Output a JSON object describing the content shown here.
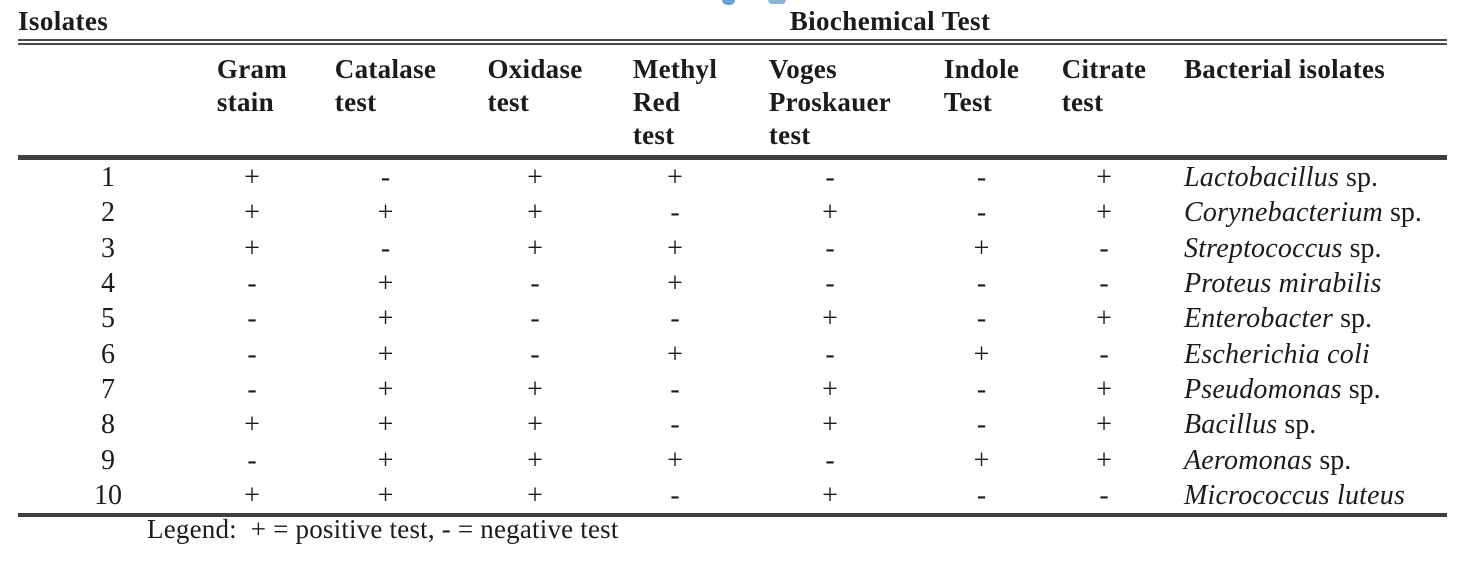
{
  "colors": {
    "text": "#1b1b1b",
    "rule": "#3f3f3f",
    "cropped_link_blue": "#6d9fd0",
    "background": "#ffffff"
  },
  "table": {
    "row_group_label": "Isolates",
    "group_header": "Biochemical Test",
    "column_headers": [
      {
        "id": "gram-stain",
        "lines": [
          "Gram",
          "stain"
        ]
      },
      {
        "id": "catalase-test",
        "lines": [
          "Catalase",
          "test"
        ]
      },
      {
        "id": "oxidase-test",
        "lines": [
          "Oxidase",
          "test"
        ]
      },
      {
        "id": "methyl-red-test",
        "lines": [
          "Methyl",
          "Red",
          "test"
        ]
      },
      {
        "id": "voges-proskauer-test",
        "lines": [
          "Voges",
          "Proskauer",
          "test"
        ]
      },
      {
        "id": "indole-test",
        "lines": [
          "Indole",
          "Test"
        ]
      },
      {
        "id": "citrate-test",
        "lines": [
          "Citrate",
          "test"
        ]
      },
      {
        "id": "bacterial-isolates",
        "lines": [
          "Bacterial isolates"
        ]
      }
    ],
    "rows": [
      {
        "isolate": "1",
        "gram_stain": "+",
        "catalase": "-",
        "oxidase": "+",
        "methyl_red": "+",
        "voges_proskauer": "-",
        "indole": "-",
        "citrate": "+",
        "species_italic": "Lactobacillus",
        "species_suffix": " sp."
      },
      {
        "isolate": "2",
        "gram_stain": "+",
        "catalase": "+",
        "oxidase": "+",
        "methyl_red": "-",
        "voges_proskauer": "+",
        "indole": "-",
        "citrate": "+",
        "species_italic": "Corynebacterium",
        "species_suffix": " sp."
      },
      {
        "isolate": "3",
        "gram_stain": "+",
        "catalase": "-",
        "oxidase": "+",
        "methyl_red": "+",
        "voges_proskauer": "-",
        "indole": "+",
        "citrate": "-",
        "species_italic": "Streptococcus",
        "species_suffix": " sp."
      },
      {
        "isolate": "4",
        "gram_stain": "-",
        "catalase": "+",
        "oxidase": "-",
        "methyl_red": "+",
        "voges_proskauer": "-",
        "indole": "-",
        "citrate": "-",
        "species_italic": "Proteus mirabilis",
        "species_suffix": ""
      },
      {
        "isolate": "5",
        "gram_stain": "-",
        "catalase": "+",
        "oxidase": "-",
        "methyl_red": "-",
        "voges_proskauer": "+",
        "indole": "-",
        "citrate": "+",
        "species_italic": "Enterobacter",
        "species_suffix": " sp."
      },
      {
        "isolate": "6",
        "gram_stain": "-",
        "catalase": "+",
        "oxidase": "-",
        "methyl_red": "+",
        "voges_proskauer": "-",
        "indole": "+",
        "citrate": "-",
        "species_italic": "Escherichia coli",
        "species_suffix": ""
      },
      {
        "isolate": "7",
        "gram_stain": "-",
        "catalase": "+",
        "oxidase": "+",
        "methyl_red": "-",
        "voges_proskauer": "+",
        "indole": "-",
        "citrate": "+",
        "species_italic": "Pseudomonas",
        "species_suffix": " sp."
      },
      {
        "isolate": "8",
        "gram_stain": "+",
        "catalase": "+",
        "oxidase": "+",
        "methyl_red": "-",
        "voges_proskauer": "+",
        "indole": "-",
        "citrate": "+",
        "species_italic": "Bacillus",
        "species_suffix": " sp."
      },
      {
        "isolate": "9",
        "gram_stain": "-",
        "catalase": "+",
        "oxidase": "+",
        "methyl_red": "+",
        "voges_proskauer": "-",
        "indole": "+",
        "citrate": "+",
        "species_italic": "Aeromonas",
        "species_suffix": " sp."
      },
      {
        "isolate": "10",
        "gram_stain": "+",
        "catalase": "+",
        "oxidase": "+",
        "methyl_red": "-",
        "voges_proskauer": "+",
        "indole": "-",
        "citrate": "-",
        "species_italic": "Micrococcus luteus",
        "species_suffix": ""
      }
    ],
    "legend": "Legend:  + = positive test, - = negative test"
  }
}
